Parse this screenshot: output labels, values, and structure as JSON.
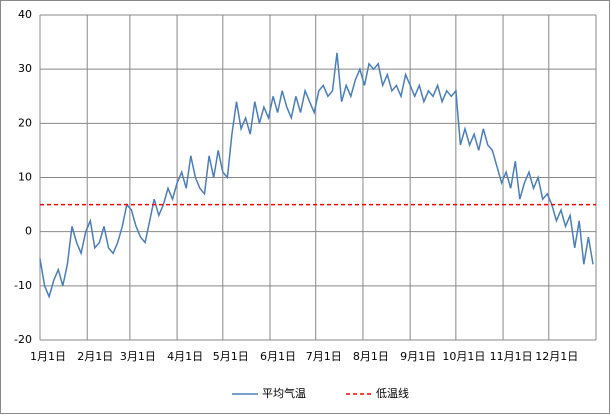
{
  "chart_data": {
    "type": "line",
    "xlim": [
      0,
      365
    ],
    "ylim": [
      -20,
      40
    ],
    "yticks": [
      -20,
      -10,
      0,
      10,
      20,
      30,
      40
    ],
    "grid": true,
    "legend": "bottom",
    "xticks": [
      {
        "value": 0,
        "label": "1月1日"
      },
      {
        "value": 31,
        "label": "2月1日"
      },
      {
        "value": 59,
        "label": "3月1日"
      },
      {
        "value": 90,
        "label": "4月1日"
      },
      {
        "value": 120,
        "label": "5月1日"
      },
      {
        "value": 151,
        "label": "6月1日"
      },
      {
        "value": 181,
        "label": "7月1日"
      },
      {
        "value": 212,
        "label": "8月1日"
      },
      {
        "value": 243,
        "label": "9月1日"
      },
      {
        "value": 273,
        "label": "10月1日"
      },
      {
        "value": 304,
        "label": "11月1日"
      },
      {
        "value": 334,
        "label": "12月1日"
      }
    ],
    "series": [
      {
        "name": "平均气温",
        "color": "#4a7ebb",
        "dashed": false,
        "x": [
          0,
          3,
          6,
          9,
          12,
          15,
          18,
          21,
          24,
          27,
          30,
          33,
          36,
          39,
          42,
          45,
          48,
          51,
          54,
          57,
          60,
          63,
          66,
          69,
          72,
          75,
          78,
          81,
          84,
          87,
          90,
          93,
          96,
          99,
          102,
          105,
          108,
          111,
          114,
          117,
          120,
          123,
          126,
          129,
          132,
          135,
          138,
          141,
          144,
          147,
          150,
          153,
          156,
          159,
          162,
          165,
          168,
          171,
          174,
          177,
          180,
          183,
          186,
          189,
          192,
          195,
          198,
          201,
          204,
          207,
          210,
          213,
          216,
          219,
          222,
          225,
          228,
          231,
          234,
          237,
          240,
          243,
          246,
          249,
          252,
          255,
          258,
          261,
          264,
          267,
          270,
          273,
          276,
          279,
          282,
          285,
          288,
          291,
          294,
          297,
          300,
          303,
          306,
          309,
          312,
          315,
          318,
          321,
          324,
          327,
          330,
          333,
          336,
          339,
          342,
          345,
          348,
          351,
          354,
          357,
          360,
          363
        ],
        "values": [
          -5,
          -10,
          -12,
          -9,
          -7,
          -10,
          -6,
          1,
          -2,
          -4,
          0,
          2,
          -3,
          -2,
          1,
          -3,
          -4,
          -2,
          1,
          5,
          4,
          1,
          -1,
          -2,
          2,
          6,
          3,
          5,
          8,
          6,
          9,
          11,
          8,
          14,
          10,
          8,
          7,
          14,
          10,
          15,
          11,
          10,
          18,
          24,
          19,
          21,
          18,
          24,
          20,
          23,
          21,
          25,
          22,
          26,
          23,
          21,
          25,
          22,
          26,
          24,
          22,
          26,
          27,
          25,
          26,
          33,
          24,
          27,
          25,
          28,
          30,
          27,
          31,
          30,
          31,
          27,
          29,
          26,
          27,
          25,
          29,
          27,
          25,
          27,
          24,
          26,
          25,
          27,
          24,
          26,
          25,
          26,
          16,
          19,
          16,
          18,
          15,
          19,
          16,
          15,
          12,
          9,
          11,
          8,
          13,
          6,
          9,
          11,
          8,
          10,
          6,
          7,
          5,
          2,
          4,
          1,
          3,
          -3,
          2,
          -6,
          -1,
          -6
        ]
      },
      {
        "name": "低温线",
        "color": "#ff0000",
        "dashed": true,
        "x": [
          0,
          365
        ],
        "values": [
          5,
          5
        ]
      }
    ]
  }
}
